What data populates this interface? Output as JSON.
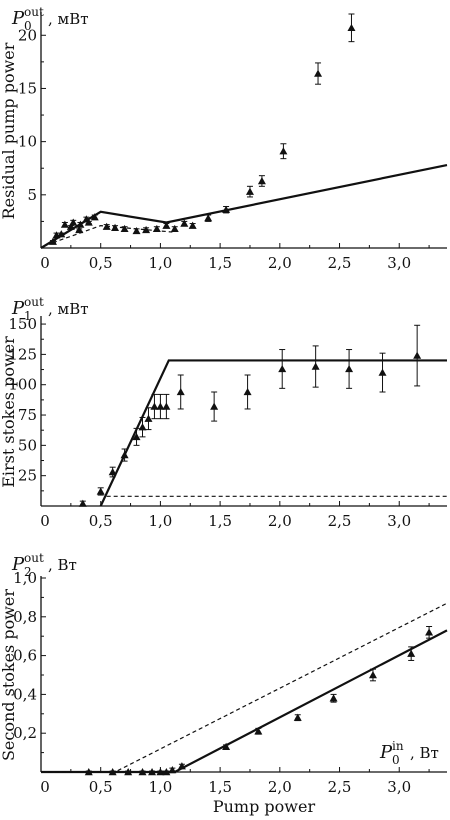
{
  "chart_data": [
    {
      "type": "scatter",
      "panel_label": {
        "symbol": "P",
        "sub": "0",
        "sup": "out",
        "unit": ", мВт"
      },
      "ylabel": "Residual pump power",
      "xlabel": "",
      "xlim": [
        0,
        3.4
      ],
      "ylim": [
        0,
        22
      ],
      "x_ticks": [
        0,
        0.5,
        1.0,
        1.5,
        2.0,
        2.5,
        3.0
      ],
      "x_tick_labels": [
        "0",
        "0,5",
        "1,0",
        "1,5",
        "2,0",
        "2,5",
        "3,0"
      ],
      "y_ticks": [
        5,
        10,
        15,
        20
      ],
      "y_tick_labels": [
        "5",
        "10",
        "15",
        "20"
      ],
      "grid": false,
      "series": [
        {
          "marker": "triangle",
          "x": [
            0.13,
            0.2,
            0.27,
            0.33,
            0.38,
            0.45,
            0.55,
            0.62,
            0.7,
            0.8,
            0.88,
            0.97,
            1.05,
            1.12,
            1.2,
            1.27,
            1.4,
            1.55,
            1.75,
            1.85,
            2.03,
            2.32,
            2.6
          ],
          "y": [
            1.2,
            2.2,
            2.4,
            2.2,
            2.7,
            2.9,
            2.0,
            1.9,
            1.8,
            1.6,
            1.7,
            1.8,
            2.1,
            1.8,
            2.3,
            2.1,
            2.8,
            3.6,
            5.3,
            6.3,
            9.1,
            16.4,
            20.7
          ],
          "yerr": [
            0.2,
            0.2,
            0.2,
            0.2,
            0.2,
            0.2,
            0.2,
            0.2,
            0.2,
            0.2,
            0.2,
            0.2,
            0.2,
            0.2,
            0.2,
            0.2,
            0.3,
            0.3,
            0.5,
            0.5,
            0.7,
            1.0,
            1.3
          ]
        },
        {
          "marker": "triangle",
          "x": [
            0.1,
            0.17,
            0.25,
            0.32,
            0.4
          ],
          "y": [
            0.6,
            1.3,
            2.0,
            1.7,
            2.4
          ],
          "yerr": [
            0.1,
            0.1,
            0.1,
            0.1,
            0.1
          ]
        }
      ],
      "lines": [
        {
          "style": "solid",
          "x": [
            0.0,
            0.5,
            1.05,
            3.4
          ],
          "y": [
            0.0,
            3.4,
            2.4,
            7.8
          ]
        },
        {
          "style": "dashed",
          "x": [
            0.1,
            0.5,
            1.1
          ],
          "y": [
            0.5,
            2.1,
            1.5
          ]
        }
      ]
    },
    {
      "type": "scatter",
      "panel_label": {
        "symbol": "P",
        "sub": "1",
        "sup": "out",
        "unit": ", мВт"
      },
      "ylabel": "Eirst stokes power",
      "xlabel": "",
      "xlim": [
        0,
        3.4
      ],
      "ylim": [
        0,
        155
      ],
      "x_ticks": [
        0,
        0.5,
        1.0,
        1.5,
        2.0,
        2.5,
        3.0
      ],
      "x_tick_labels": [
        "0",
        "0,5",
        "1,0",
        "1,5",
        "2,0",
        "2,5",
        "3,0"
      ],
      "y_ticks": [
        25,
        50,
        75,
        100,
        125,
        150
      ],
      "y_tick_labels": [
        "25",
        "50",
        "75",
        "100",
        "125",
        "150"
      ],
      "grid": false,
      "series": [
        {
          "marker": "triangle",
          "x": [
            0.35,
            0.5,
            0.6,
            0.7,
            0.8,
            0.85,
            0.9,
            0.95,
            1.0,
            1.05,
            1.17,
            1.45,
            1.73,
            2.02,
            2.3,
            2.58,
            2.86,
            3.15
          ],
          "y": [
            2,
            12,
            28,
            42,
            57,
            65,
            72,
            82,
            82,
            82,
            94,
            82,
            94,
            113,
            115,
            113,
            110,
            124
          ],
          "yerr": [
            2,
            3,
            4,
            5,
            7,
            8,
            9,
            10,
            10,
            10,
            14,
            12,
            14,
            16,
            17,
            16,
            16,
            25
          ]
        }
      ],
      "lines": [
        {
          "style": "solid",
          "x": [
            0.5,
            1.07,
            3.4
          ],
          "y": [
            0,
            120,
            120
          ]
        },
        {
          "style": "dashed",
          "x": [
            0.55,
            3.4
          ],
          "y": [
            8,
            8
          ]
        }
      ]
    },
    {
      "type": "scatter",
      "panel_label": {
        "symbol": "P",
        "sub": "2",
        "sup": "out",
        "unit": ", Вт"
      },
      "ylabel": "Second  stokes power",
      "xlabel": "Pump power",
      "xlabel_right": {
        "symbol": "P",
        "sub": "0",
        "sup": "in",
        "unit": ", Вт"
      },
      "xlim": [
        0,
        3.4
      ],
      "ylim": [
        0,
        1.0
      ],
      "x_ticks": [
        0,
        0.5,
        1.0,
        1.5,
        2.0,
        2.5,
        3.0
      ],
      "x_tick_labels": [
        "0",
        "0,5",
        "1,0",
        "1,5",
        "2,0",
        "2,5",
        "3,0"
      ],
      "y_ticks": [
        0.2,
        0.4,
        0.6,
        0.8,
        1.0
      ],
      "y_tick_labels": [
        "0,2",
        "0,4",
        "0,6",
        "0,8",
        "1,0"
      ],
      "grid": false,
      "series": [
        {
          "marker": "triangle",
          "x": [
            0.4,
            0.6,
            0.73,
            0.85,
            0.93,
            1.0,
            1.05,
            1.1,
            1.18,
            1.55,
            1.82,
            2.15,
            2.45,
            2.78,
            3.1,
            3.25
          ],
          "y": [
            0.0,
            0.0,
            0.0,
            0.0,
            0.0,
            0.0,
            0.0,
            0.01,
            0.03,
            0.13,
            0.21,
            0.28,
            0.38,
            0.5,
            0.61,
            0.72
          ],
          "yerr": [
            0.005,
            0.005,
            0.005,
            0.005,
            0.005,
            0.005,
            0.005,
            0.01,
            0.01,
            0.01,
            0.015,
            0.015,
            0.02,
            0.03,
            0.035,
            0.03
          ]
        }
      ],
      "lines": [
        {
          "style": "solid",
          "x": [
            0.0,
            1.12,
            3.4
          ],
          "y": [
            0.0,
            0.0,
            0.73
          ]
        },
        {
          "style": "dashed",
          "x": [
            0.0,
            0.62,
            3.4
          ],
          "y": [
            0.0,
            0.0,
            0.87
          ]
        }
      ]
    }
  ]
}
